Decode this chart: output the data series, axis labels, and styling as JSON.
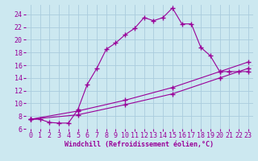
{
  "xlabel": "Windchill (Refroidissement éolien,°C)",
  "bg_color": "#cce8f0",
  "line_color": "#990099",
  "grid_color": "#aaccdd",
  "xlim": [
    -0.5,
    23.5
  ],
  "ylim": [
    6,
    25.5
  ],
  "xticks": [
    0,
    1,
    2,
    3,
    4,
    5,
    6,
    7,
    8,
    9,
    10,
    11,
    12,
    13,
    14,
    15,
    16,
    17,
    18,
    19,
    20,
    21,
    22,
    23
  ],
  "yticks": [
    6,
    8,
    10,
    12,
    14,
    16,
    18,
    20,
    22,
    24
  ],
  "series0_x": [
    0,
    1,
    2,
    3,
    4,
    5,
    6,
    7,
    8,
    9,
    10,
    11,
    12,
    13,
    14,
    15,
    16,
    17,
    18,
    19,
    20,
    21,
    22,
    23
  ],
  "series0_y": [
    7.5,
    7.5,
    7.0,
    6.9,
    6.9,
    9.0,
    13.0,
    15.5,
    18.5,
    19.5,
    20.8,
    21.8,
    23.5,
    23.0,
    23.5,
    25.0,
    22.5,
    22.5,
    18.8,
    17.5,
    15.0,
    15.0,
    15.0,
    15.0
  ],
  "series1_x": [
    0,
    5,
    10,
    15,
    20,
    23
  ],
  "series1_y": [
    7.5,
    8.8,
    10.5,
    12.5,
    15.0,
    16.5
  ],
  "series2_x": [
    0,
    5,
    10,
    15,
    20,
    23
  ],
  "series2_y": [
    7.5,
    8.2,
    9.8,
    11.5,
    14.0,
    15.5
  ],
  "xlabel_fontsize": 6,
  "tick_fontsize": 6
}
